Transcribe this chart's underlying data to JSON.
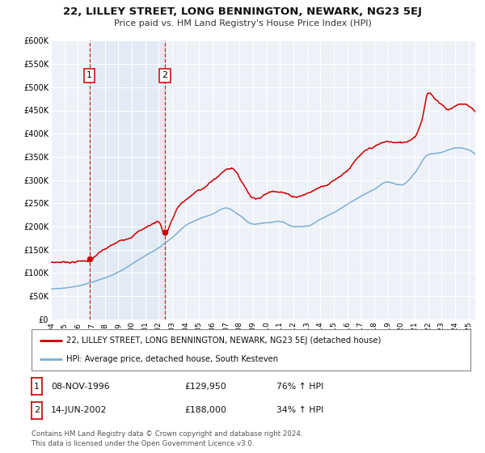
{
  "title": "22, LILLEY STREET, LONG BENNINGTON, NEWARK, NG23 5EJ",
  "subtitle": "Price paid vs. HM Land Registry's House Price Index (HPI)",
  "background_color": "#ffffff",
  "plot_bg_color": "#eef2f8",
  "grid_color": "#ffffff",
  "ylim": [
    0,
    600000
  ],
  "xlim_start": 1994.0,
  "xlim_end": 2025.5,
  "yticks": [
    0,
    50000,
    100000,
    150000,
    200000,
    250000,
    300000,
    350000,
    400000,
    450000,
    500000,
    550000,
    600000
  ],
  "ytick_labels": [
    "£0",
    "£50K",
    "£100K",
    "£150K",
    "£200K",
    "£250K",
    "£300K",
    "£350K",
    "£400K",
    "£450K",
    "£500K",
    "£550K",
    "£600K"
  ],
  "xticks": [
    1994,
    1995,
    1996,
    1997,
    1998,
    1999,
    2000,
    2001,
    2002,
    2003,
    2004,
    2005,
    2006,
    2007,
    2008,
    2009,
    2010,
    2011,
    2012,
    2013,
    2014,
    2015,
    2016,
    2017,
    2018,
    2019,
    2020,
    2021,
    2022,
    2023,
    2024,
    2025
  ],
  "house_color": "#cc0000",
  "hpi_color": "#7aafd4",
  "sale1_date": 1996.86,
  "sale1_price": 129950,
  "sale1_label": "1",
  "sale2_date": 2002.45,
  "sale2_price": 188000,
  "sale2_label": "2",
  "legend_house": "22, LILLEY STREET, LONG BENNINGTON, NEWARK, NG23 5EJ (detached house)",
  "legend_hpi": "HPI: Average price, detached house, South Kesteven",
  "table_rows": [
    {
      "num": "1",
      "date": "08-NOV-1996",
      "price": "£129,950",
      "change": "76% ↑ HPI"
    },
    {
      "num": "2",
      "date": "14-JUN-2002",
      "price": "£188,000",
      "change": "34% ↑ HPI"
    }
  ],
  "footer": "Contains HM Land Registry data © Crown copyright and database right 2024.\nThis data is licensed under the Open Government Licence v3.0.",
  "hpi_anchors_x": [
    1994,
    1995,
    1996,
    1997,
    1998,
    1999,
    2000,
    2001,
    2002,
    2003,
    2004,
    2005,
    2006,
    2007,
    2008,
    2009,
    2010,
    2011,
    2012,
    2013,
    2014,
    2015,
    2016,
    2017,
    2018,
    2019,
    2020,
    2021,
    2022,
    2023,
    2024,
    2025
  ],
  "hpi_anchors_y": [
    65000,
    68000,
    73500,
    81000,
    91000,
    103000,
    121000,
    138000,
    155000,
    176000,
    202000,
    217000,
    227000,
    239000,
    224000,
    204000,
    207000,
    209000,
    199000,
    200000,
    215000,
    231000,
    249000,
    266000,
    281000,
    296000,
    290000,
    316000,
    356000,
    361000,
    371000,
    366000
  ],
  "house_anchors_x": [
    1994.0,
    1995.0,
    1996.0,
    1996.86,
    1997.5,
    1998.5,
    1999.5,
    2000.5,
    2001.5,
    2002.0,
    2002.45,
    2003.0,
    2003.5,
    2004.5,
    2005.5,
    2006.5,
    2007.0,
    2007.5,
    2008.0,
    2008.5,
    2009.0,
    2009.5,
    2010.0,
    2011.0,
    2012.0,
    2013.0,
    2014.0,
    2015.0,
    2016.0,
    2017.0,
    2018.0,
    2019.0,
    2020.0,
    2021.0,
    2021.5,
    2022.0,
    2022.5,
    2023.0,
    2023.5,
    2024.0,
    2024.5,
    2025.0
  ],
  "house_anchors_y": [
    122000,
    124000,
    127000,
    129950,
    143000,
    158000,
    172000,
    192000,
    208000,
    215000,
    188000,
    220000,
    248000,
    272000,
    292000,
    315000,
    328000,
    333000,
    312000,
    290000,
    272000,
    275000,
    283000,
    292000,
    282000,
    290000,
    305000,
    323000,
    348000,
    378000,
    392000,
    401000,
    398000,
    415000,
    450000,
    510000,
    498000,
    488000,
    478000,
    485000,
    490000,
    487000
  ]
}
